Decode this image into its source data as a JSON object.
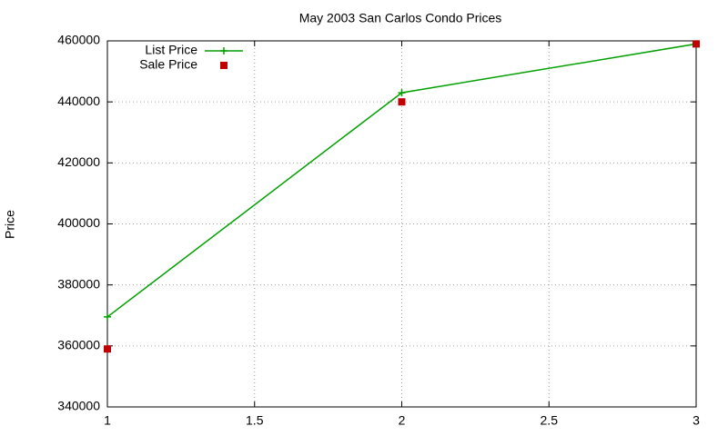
{
  "chart_data": {
    "type": "line",
    "title": "May 2003 San Carlos Condo Prices",
    "y_label": "Price",
    "x": [
      1,
      2,
      3
    ],
    "series": [
      {
        "name": "List Price",
        "color": "#00a000",
        "style": "linespoints",
        "marker": "plus",
        "values": [
          369500,
          443000,
          459000
        ]
      },
      {
        "name": "Sale Price",
        "color": "#c00000",
        "style": "points",
        "marker": "square",
        "values": [
          359000,
          440000,
          459000
        ]
      }
    ],
    "xlim": [
      1,
      3
    ],
    "xticks": [
      1,
      1.5,
      2,
      2.5,
      3
    ],
    "ylim": [
      340000,
      460000
    ],
    "yticks": [
      340000,
      360000,
      380000,
      400000,
      420000,
      440000,
      460000
    ],
    "grid": true,
    "legend": "top-left"
  }
}
